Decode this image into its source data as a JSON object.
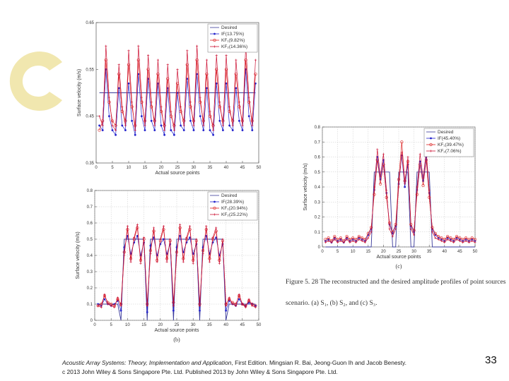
{
  "colors": {
    "desired": "#3a3a9a",
    "if": "#2222cc",
    "kf": "#dd2222",
    "kfs": "#cc1133",
    "grid": "#bbbbbb",
    "deco": "#efe4a6"
  },
  "caption": {
    "line1": "Figure 5. 28   The reconstructed and the desired amplitude profiles of point sources",
    "line2": "scenario.   (a) S₁, (b) S₂, and (c) S₃."
  },
  "footer": {
    "title": "Acoustic Array Systems: Theory, Implementation and Application",
    "rest": ", First Edition. Mingsian R. Bai, Jeong-Guon Ih and Jacob Benesty.",
    "line2": "c 2013 John Wiley & Sons Singapore Pte. Ltd. Published 2013 by John Wiley & Sons Singapore Pte. Ltd."
  },
  "page_number": "33",
  "chart_data": [
    {
      "id": "a",
      "type": "line",
      "subtitle": "(a)",
      "xlabel": "Actual source points",
      "ylabel": "Surface velocity (m/s)",
      "xlim": [
        0,
        50
      ],
      "ylim": [
        0.35,
        0.65
      ],
      "xticks": [
        "0",
        "5",
        "10",
        "15",
        "20",
        "25",
        "30",
        "35",
        "40",
        "45",
        "50"
      ],
      "yticks": [
        "0.35",
        "0.45",
        "0.55",
        "0.65"
      ],
      "grid": false,
      "legend": "top-right",
      "x_start": 1,
      "series": [
        {
          "name": "Desired",
          "color": "#3a3a9a",
          "marker": "none",
          "values": [
            0.5,
            0.5,
            0.5,
            0.5,
            0.5,
            0.5,
            0.5,
            0.5,
            0.5,
            0.5,
            0.5,
            0.5,
            0.5,
            0.5,
            0.5,
            0.5,
            0.5,
            0.5,
            0.5,
            0.5,
            0.5,
            0.5,
            0.5,
            0.5,
            0.5,
            0.5,
            0.5,
            0.5,
            0.5,
            0.5,
            0.5,
            0.5,
            0.5,
            0.5,
            0.5,
            0.5,
            0.5,
            0.5,
            0.5,
            0.5,
            0.5,
            0.5,
            0.5,
            0.5,
            0.5,
            0.5,
            0.5,
            0.5,
            0.5
          ]
        },
        {
          "name": "IF(13.75%)",
          "color": "#2222cc",
          "marker": "dot",
          "values": [
            0.43,
            0.42,
            0.55,
            0.45,
            0.42,
            0.41,
            0.51,
            0.43,
            0.42,
            0.52,
            0.44,
            0.41,
            0.54,
            0.45,
            0.42,
            0.53,
            0.44,
            0.42,
            0.52,
            0.43,
            0.41,
            0.51,
            0.42,
            0.41,
            0.5,
            0.43,
            0.42,
            0.53,
            0.44,
            0.42,
            0.54,
            0.45,
            0.42,
            0.51,
            0.42,
            0.41,
            0.52,
            0.44,
            0.42,
            0.52,
            0.43,
            0.42,
            0.51,
            0.44,
            0.42,
            0.55,
            0.45,
            0.42,
            0.52
          ]
        },
        {
          "name": "KF₁(9.82%)",
          "color": "#dd2222",
          "marker": "circle",
          "values": [
            0.42,
            0.44,
            0.57,
            0.48,
            0.44,
            0.43,
            0.54,
            0.46,
            0.44,
            0.56,
            0.47,
            0.43,
            0.57,
            0.48,
            0.44,
            0.55,
            0.47,
            0.44,
            0.54,
            0.46,
            0.43,
            0.53,
            0.45,
            0.43,
            0.52,
            0.46,
            0.44,
            0.56,
            0.47,
            0.44,
            0.57,
            0.48,
            0.44,
            0.54,
            0.45,
            0.43,
            0.55,
            0.47,
            0.44,
            0.55,
            0.46,
            0.44,
            0.54,
            0.47,
            0.44,
            0.57,
            0.48,
            0.44,
            0.54
          ]
        },
        {
          "name": "KF₂(14.36%)",
          "color": "#cc1133",
          "marker": "plus",
          "values": [
            0.45,
            0.43,
            0.6,
            0.49,
            0.43,
            0.42,
            0.56,
            0.47,
            0.43,
            0.59,
            0.48,
            0.42,
            0.6,
            0.49,
            0.43,
            0.58,
            0.48,
            0.43,
            0.57,
            0.47,
            0.42,
            0.56,
            0.46,
            0.42,
            0.55,
            0.47,
            0.43,
            0.59,
            0.48,
            0.43,
            0.6,
            0.49,
            0.43,
            0.57,
            0.46,
            0.42,
            0.58,
            0.48,
            0.43,
            0.58,
            0.47,
            0.43,
            0.57,
            0.48,
            0.43,
            0.6,
            0.49,
            0.43,
            0.57
          ]
        }
      ]
    },
    {
      "id": "b",
      "type": "line",
      "subtitle": "(b)",
      "xlabel": "Actual source points",
      "ylabel": "Surface velocity (m/s)",
      "xlim": [
        0,
        50
      ],
      "ylim": [
        0,
        0.8
      ],
      "xticks": [
        "0",
        "5",
        "10",
        "15",
        "20",
        "25",
        "30",
        "35",
        "40",
        "45",
        "50"
      ],
      "yticks": [
        "0",
        "0.1",
        "0.2",
        "0.3",
        "0.4",
        "0.5",
        "0.6",
        "0.7",
        "0.8"
      ],
      "grid": true,
      "legend": "top-right",
      "x_start": 1,
      "series": [
        {
          "name": "Desired",
          "color": "#3a3a9a",
          "marker": "none",
          "values": [
            0.1,
            0.1,
            0.1,
            0.1,
            0.1,
            0.1,
            0.1,
            0,
            0.5,
            0.5,
            0.5,
            0.5,
            0.5,
            0.5,
            0.5,
            0,
            0.5,
            0.5,
            0.5,
            0.5,
            0.5,
            0.5,
            0.5,
            0,
            0.5,
            0.5,
            0.5,
            0.5,
            0.5,
            0.5,
            0.5,
            0,
            0.5,
            0.5,
            0.5,
            0.5,
            0.5,
            0.5,
            0.5,
            0,
            0.1,
            0.1,
            0.1,
            0.1,
            0.1,
            0.1,
            0.1,
            0.1,
            0.1
          ]
        },
        {
          "name": "IF(28.39%)",
          "color": "#2222cc",
          "marker": "dot",
          "values": [
            0.1,
            0.09,
            0.13,
            0.1,
            0.09,
            0.1,
            0.12,
            0.06,
            0.45,
            0.52,
            0.41,
            0.48,
            0.52,
            0.4,
            0.48,
            0.05,
            0.46,
            0.51,
            0.4,
            0.47,
            0.5,
            0.41,
            0.47,
            0.06,
            0.45,
            0.52,
            0.42,
            0.48,
            0.51,
            0.41,
            0.47,
            0.06,
            0.45,
            0.52,
            0.41,
            0.48,
            0.51,
            0.4,
            0.47,
            0.06,
            0.12,
            0.1,
            0.09,
            0.13,
            0.1,
            0.09,
            0.11,
            0.1,
            0.09
          ]
        },
        {
          "name": "KF₁(20.94%)",
          "color": "#dd2222",
          "marker": "circle",
          "values": [
            0.09,
            0.1,
            0.15,
            0.11,
            0.1,
            0.09,
            0.13,
            0.1,
            0.42,
            0.56,
            0.38,
            0.5,
            0.57,
            0.37,
            0.5,
            0.1,
            0.43,
            0.55,
            0.37,
            0.49,
            0.56,
            0.38,
            0.49,
            0.11,
            0.42,
            0.57,
            0.38,
            0.5,
            0.56,
            0.37,
            0.49,
            0.1,
            0.43,
            0.56,
            0.38,
            0.5,
            0.55,
            0.37,
            0.49,
            0.1,
            0.13,
            0.11,
            0.1,
            0.15,
            0.1,
            0.09,
            0.12,
            0.1,
            0.09
          ]
        },
        {
          "name": "KF₂(25.22%)",
          "color": "#cc1133",
          "marker": "plus",
          "values": [
            0.09,
            0.08,
            0.16,
            0.1,
            0.09,
            0.08,
            0.14,
            0.09,
            0.4,
            0.58,
            0.36,
            0.51,
            0.59,
            0.35,
            0.51,
            0.09,
            0.41,
            0.57,
            0.36,
            0.5,
            0.58,
            0.36,
            0.5,
            0.09,
            0.4,
            0.59,
            0.36,
            0.51,
            0.58,
            0.35,
            0.5,
            0.09,
            0.41,
            0.58,
            0.36,
            0.51,
            0.57,
            0.35,
            0.5,
            0.09,
            0.14,
            0.1,
            0.09,
            0.16,
            0.1,
            0.08,
            0.13,
            0.09,
            0.08
          ]
        }
      ]
    },
    {
      "id": "c",
      "type": "line",
      "subtitle": "(c)",
      "xlabel": "Actual source points",
      "ylabel": "Surface velocity (m/s)",
      "xlim": [
        0,
        50
      ],
      "ylim": [
        0,
        0.8
      ],
      "xticks": [
        "0",
        "5",
        "10",
        "15",
        "20",
        "25",
        "30",
        "35",
        "40",
        "45",
        "50"
      ],
      "yticks": [
        "0",
        "0.1",
        "0.2",
        "0.3",
        "0.4",
        "0.5",
        "0.6",
        "0.7",
        "0.8"
      ],
      "grid": true,
      "legend": "top-right",
      "x_start": 1,
      "series": [
        {
          "name": "Desired",
          "color": "#3a3a9a",
          "marker": "none",
          "values": [
            0,
            0,
            0,
            0,
            0,
            0,
            0,
            0,
            0,
            0,
            0,
            0,
            0,
            0,
            0,
            0,
            0.5,
            0.5,
            0.5,
            0.5,
            0.5,
            0.5,
            0,
            0,
            0.5,
            0.5,
            0.5,
            0.5,
            0,
            0,
            0.5,
            0.5,
            0.5,
            0.5,
            0.5,
            0,
            0,
            0,
            0,
            0,
            0,
            0,
            0,
            0,
            0,
            0,
            0,
            0,
            0,
            0
          ]
        },
        {
          "name": "IF(45.40%)",
          "color": "#2222cc",
          "marker": "dot",
          "values": [
            0.04,
            0.05,
            0.03,
            0.06,
            0.04,
            0.05,
            0.03,
            0.06,
            0.04,
            0.05,
            0.04,
            0.06,
            0.05,
            0.04,
            0.08,
            0.12,
            0.38,
            0.6,
            0.45,
            0.58,
            0.36,
            0.15,
            0.09,
            0.14,
            0.42,
            0.61,
            0.4,
            0.55,
            0.14,
            0.1,
            0.38,
            0.57,
            0.44,
            0.6,
            0.36,
            0.12,
            0.08,
            0.06,
            0.05,
            0.04,
            0.06,
            0.05,
            0.04,
            0.06,
            0.05,
            0.04,
            0.05,
            0.04,
            0.05,
            0.04
          ]
        },
        {
          "name": "KF₁(39.47%)",
          "color": "#dd2222",
          "marker": "circle",
          "values": [
            0.05,
            0.06,
            0.04,
            0.07,
            0.05,
            0.06,
            0.04,
            0.07,
            0.05,
            0.06,
            0.05,
            0.07,
            0.06,
            0.05,
            0.09,
            0.13,
            0.35,
            0.58,
            0.42,
            0.55,
            0.33,
            0.16,
            0.1,
            0.15,
            0.45,
            0.7,
            0.44,
            0.57,
            0.15,
            0.11,
            0.35,
            0.55,
            0.41,
            0.58,
            0.33,
            0.13,
            0.09,
            0.07,
            0.06,
            0.05,
            0.07,
            0.06,
            0.05,
            0.07,
            0.06,
            0.05,
            0.06,
            0.05,
            0.06,
            0.05
          ]
        },
        {
          "name": "KF₂(7.06%)",
          "color": "#cc1133",
          "marker": "plus",
          "values": [
            0.03,
            0.04,
            0.03,
            0.05,
            0.03,
            0.04,
            0.03,
            0.05,
            0.03,
            0.04,
            0.03,
            0.05,
            0.04,
            0.03,
            0.06,
            0.1,
            0.4,
            0.65,
            0.47,
            0.62,
            0.38,
            0.12,
            0.07,
            0.12,
            0.4,
            0.63,
            0.42,
            0.6,
            0.12,
            0.08,
            0.4,
            0.62,
            0.46,
            0.64,
            0.38,
            0.1,
            0.06,
            0.05,
            0.04,
            0.03,
            0.05,
            0.04,
            0.03,
            0.05,
            0.04,
            0.03,
            0.04,
            0.03,
            0.04,
            0.03
          ]
        }
      ]
    }
  ]
}
